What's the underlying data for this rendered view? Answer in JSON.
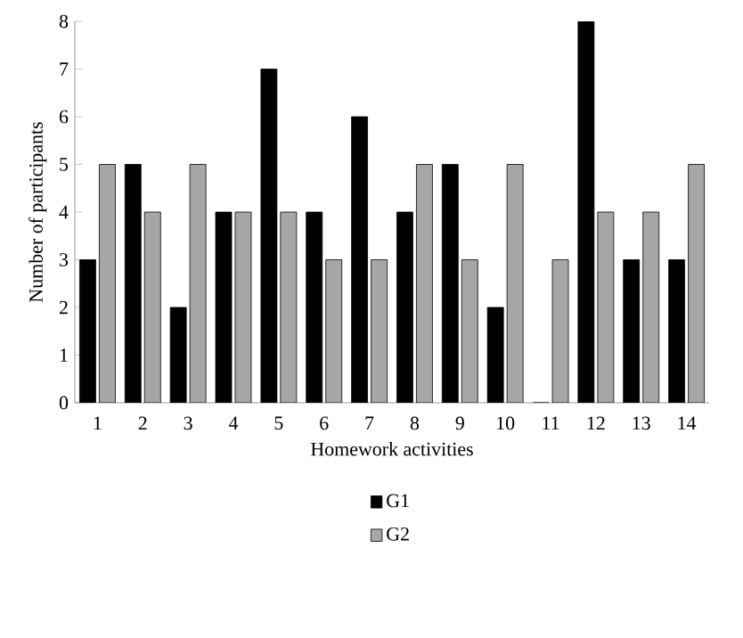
{
  "chart_data": {
    "type": "bar",
    "xlabel": "Homework activities",
    "ylabel": "Number of participants",
    "categories": [
      "1",
      "2",
      "3",
      "4",
      "5",
      "6",
      "7",
      "8",
      "9",
      "10",
      "11",
      "12",
      "13",
      "14"
    ],
    "series": [
      {
        "name": "G1",
        "color": "#000000",
        "values": [
          3,
          5,
          2,
          4,
          7,
          4,
          6,
          4,
          5,
          2,
          0,
          8,
          3,
          3
        ]
      },
      {
        "name": "G2",
        "color": "#a6a6a6",
        "values": [
          5,
          4,
          5,
          4,
          4,
          3,
          3,
          5,
          3,
          5,
          3,
          4,
          4,
          5
        ]
      }
    ],
    "ylim": [
      0,
      8
    ],
    "yticks": [
      0,
      1,
      2,
      3,
      4,
      5,
      6,
      7,
      8
    ],
    "grid": false,
    "legend": "bottom"
  }
}
